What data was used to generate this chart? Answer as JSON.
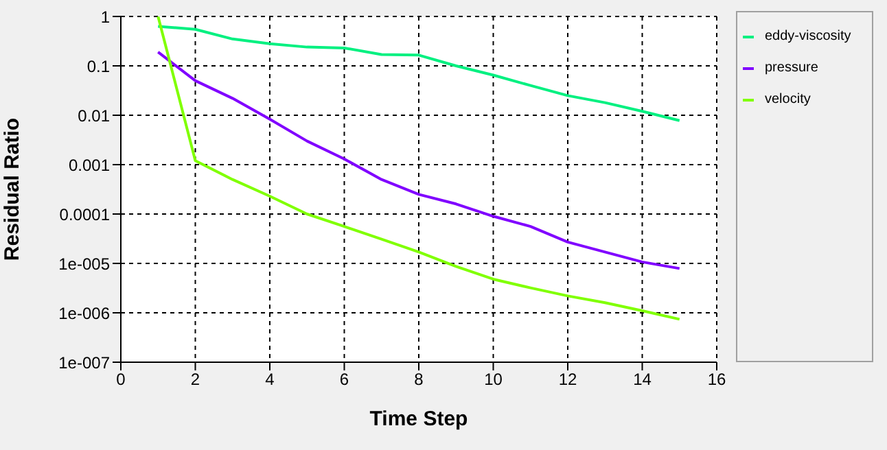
{
  "chart_data": {
    "type": "line",
    "xlabel": "Time Step",
    "ylabel": "Residual Ratio",
    "x": [
      1,
      2,
      3,
      4,
      5,
      6,
      7,
      8,
      9,
      10,
      11,
      12,
      13,
      14,
      15
    ],
    "series": [
      {
        "name": "eddy-viscosity",
        "color": "#00f080",
        "values": [
          0.63,
          0.55,
          0.35,
          0.28,
          0.24,
          0.23,
          0.17,
          0.165,
          0.1,
          0.065,
          0.04,
          0.025,
          0.018,
          0.012,
          0.0078
        ]
      },
      {
        "name": "pressure",
        "color": "#8000ff",
        "values": [
          0.19,
          0.05,
          0.022,
          0.0083,
          0.003,
          0.0013,
          0.0005,
          0.00025,
          0.00016,
          9e-05,
          5.6e-05,
          2.7e-05,
          1.7e-05,
          1.07e-05,
          7.9e-06
        ]
      },
      {
        "name": "velocity",
        "color": "#80ff00",
        "values": [
          1,
          0.0012,
          0.0005,
          0.00023,
          0.0001,
          5.6e-05,
          3.1e-05,
          1.7e-05,
          8.7e-06,
          4.8e-06,
          3.2e-06,
          2.2e-06,
          1.6e-06,
          1.1e-06,
          7.4e-07
        ]
      }
    ],
    "log": "y",
    "xlim": [
      0,
      16
    ],
    "xticks": [
      0,
      2,
      4,
      6,
      8,
      10,
      12,
      14,
      16
    ],
    "ylim": [
      1e-07,
      1
    ],
    "yticks": [
      1,
      0.1,
      0.01,
      0.001,
      0.0001,
      {
        "value": 1e-05,
        "label": "1e-005"
      },
      {
        "value": 1e-06,
        "label": "1e-006"
      },
      {
        "value": 1e-07,
        "label": "1e-007"
      }
    ],
    "grid": true,
    "legend": "right",
    "marker": "none",
    "line_style": "solid"
  }
}
